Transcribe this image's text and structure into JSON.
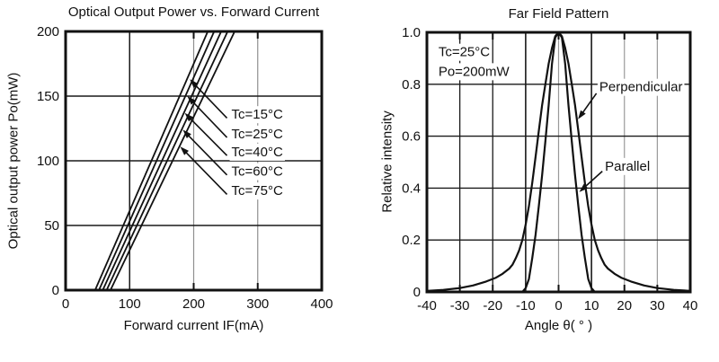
{
  "page": {
    "background": "#ffffff",
    "ink": "#111111",
    "grid_gray": "#8f8f8f"
  },
  "chart_data": [
    {
      "type": "line",
      "title": "Optical Output Power vs. Forward Current",
      "xlabel": "Forward current IF(mA)",
      "ylabel": "Optical output power Po(mW)",
      "xlim": [
        0,
        400
      ],
      "ylim": [
        0,
        200
      ],
      "xtick_vals": [
        0,
        100,
        200,
        300,
        400
      ],
      "xtick_labels": [
        "0",
        "100",
        "200",
        "300",
        "400"
      ],
      "ytick_vals": [
        0,
        50,
        100,
        150,
        200
      ],
      "ytick_labels": [
        "0",
        "50",
        "100",
        "150",
        "200"
      ],
      "grid": {
        "x": [
          {
            "v": 100,
            "color": "#1a1a1a",
            "w": 1.5
          },
          {
            "v": 200,
            "color": "#8f8f8f",
            "w": 1.2
          },
          {
            "v": 300,
            "color": "#8f8f8f",
            "w": 1.2
          }
        ],
        "y": [
          {
            "v": 50,
            "color": "#1a1a1a",
            "w": 1.4
          },
          {
            "v": 100,
            "color": "#1a1a1a",
            "w": 1.4
          },
          {
            "v": 150,
            "color": "#1a1a1a",
            "w": 1.4
          }
        ],
        "stubs_x": [
          200,
          300
        ]
      },
      "series": [
        {
          "name": "Tc=15C",
          "points": [
            [
              46,
              0
            ],
            [
              222,
              200
            ]
          ]
        },
        {
          "name": "Tc=25C",
          "points": [
            [
              52,
              0
            ],
            [
              232,
              200
            ]
          ]
        },
        {
          "name": "Tc=40C",
          "points": [
            [
              58,
              0
            ],
            [
              243,
              200
            ]
          ]
        },
        {
          "name": "Tc=60C",
          "points": [
            [
              64,
              0
            ],
            [
              253,
              200
            ]
          ]
        },
        {
          "name": "Tc=75C",
          "points": [
            [
              70,
              0
            ],
            [
              264,
              200
            ]
          ]
        }
      ],
      "labels": [
        {
          "text": "Tc=15°C",
          "x": 259,
          "y": 136
        },
        {
          "text": "Tc=25°C",
          "x": 259,
          "y": 121
        },
        {
          "text": "Tc=40°C",
          "x": 259,
          "y": 107
        },
        {
          "text": "Tc=60°C",
          "x": 259,
          "y": 92
        },
        {
          "text": "Tc=75°C",
          "x": 259,
          "y": 77
        }
      ],
      "arrows": [
        {
          "from": [
            252,
            133
          ],
          "to": [
            194,
            163
          ]
        },
        {
          "from": [
            252,
            118
          ],
          "to": [
            190,
            150
          ]
        },
        {
          "from": [
            252,
            104
          ],
          "to": [
            186,
            137
          ]
        },
        {
          "from": [
            252,
            89
          ],
          "to": [
            183,
            124
          ]
        },
        {
          "from": [
            252,
            74
          ],
          "to": [
            179,
            111
          ]
        }
      ]
    },
    {
      "type": "line",
      "title": "Far Field Pattern",
      "xlabel": "Angle θ( ° )",
      "ylabel": "Relative intensity",
      "xlim": [
        -40,
        40
      ],
      "ylim": [
        0,
        1
      ],
      "xtick_vals": [
        -40,
        -30,
        -20,
        -10,
        0,
        10,
        20,
        30,
        40
      ],
      "xtick_labels": [
        "-40",
        "-30",
        "-20",
        "-10",
        "0",
        "10",
        "20",
        "30",
        "40"
      ],
      "ytick_vals": [
        0,
        0.2,
        0.4,
        0.6,
        0.8,
        1.0
      ],
      "ytick_labels": [
        "0",
        "0.2",
        "0.4",
        "0.6",
        "0.8",
        "1.0"
      ],
      "grid": {
        "x": [
          {
            "v": -30,
            "color": "#1a1a1a",
            "w": 1.3
          },
          {
            "v": -20,
            "color": "#1a1a1a",
            "w": 1.3
          },
          {
            "v": -10,
            "color": "#1a1a1a",
            "w": 1.6
          },
          {
            "v": 0,
            "color": "#9a9a9a",
            "w": 1.2
          },
          {
            "v": 10,
            "color": "#1a1a1a",
            "w": 1.6
          },
          {
            "v": 20,
            "color": "#9a9a9a",
            "w": 1.2
          },
          {
            "v": 30,
            "color": "#9a9a9a",
            "w": 1.2
          }
        ],
        "y": [
          {
            "v": 0.2,
            "color": "#1a1a1a",
            "w": 1.4
          },
          {
            "v": 0.4,
            "color": "#1a1a1a",
            "w": 1.4
          },
          {
            "v": 0.6,
            "color": "#1a1a1a",
            "w": 1.4
          },
          {
            "v": 0.8,
            "color": "#1a1a1a",
            "w": 1.4
          }
        ],
        "stubs_x": [
          -30,
          -20,
          0,
          20,
          30
        ]
      },
      "series": [
        {
          "name": "Perpendicular",
          "points": [
            [
              -40,
              0.004
            ],
            [
              -35,
              0.008
            ],
            [
              -30,
              0.015
            ],
            [
              -26,
              0.025
            ],
            [
              -22,
              0.04
            ],
            [
              -19,
              0.055
            ],
            [
              -17,
              0.07
            ],
            [
              -15,
              0.09
            ],
            [
              -14,
              0.105
            ],
            [
              -13,
              0.13
            ],
            [
              -12,
              0.16
            ],
            [
              -11,
              0.2
            ],
            [
              -10,
              0.26
            ],
            [
              -9,
              0.33
            ],
            [
              -8,
              0.42
            ],
            [
              -7,
              0.52
            ],
            [
              -6,
              0.62
            ],
            [
              -5,
              0.72
            ],
            [
              -4,
              0.8
            ],
            [
              -3,
              0.88
            ],
            [
              -2,
              0.94
            ],
            [
              -1,
              0.985
            ],
            [
              0,
              1.0
            ],
            [
              1,
              0.985
            ],
            [
              2,
              0.94
            ],
            [
              3,
              0.88
            ],
            [
              4,
              0.8
            ],
            [
              5,
              0.72
            ],
            [
              6,
              0.62
            ],
            [
              7,
              0.52
            ],
            [
              8,
              0.42
            ],
            [
              9,
              0.33
            ],
            [
              10,
              0.26
            ],
            [
              11,
              0.2
            ],
            [
              12,
              0.16
            ],
            [
              13,
              0.13
            ],
            [
              14,
              0.105
            ],
            [
              15,
              0.09
            ],
            [
              17,
              0.07
            ],
            [
              19,
              0.055
            ],
            [
              22,
              0.04
            ],
            [
              26,
              0.025
            ],
            [
              30,
              0.015
            ],
            [
              35,
              0.008
            ],
            [
              40,
              0.004
            ]
          ]
        },
        {
          "name": "Parallel",
          "points": [
            [
              -11,
              0
            ],
            [
              -10,
              0.015
            ],
            [
              -9,
              0.05
            ],
            [
              -8,
              0.13
            ],
            [
              -7,
              0.22
            ],
            [
              -6,
              0.33
            ],
            [
              -5,
              0.45
            ],
            [
              -4,
              0.58
            ],
            [
              -3,
              0.72
            ],
            [
              -2,
              0.88
            ],
            [
              -1,
              0.98
            ],
            [
              0,
              1.0
            ],
            [
              1,
              0.98
            ],
            [
              2,
              0.88
            ],
            [
              3,
              0.72
            ],
            [
              4,
              0.58
            ],
            [
              5,
              0.45
            ],
            [
              6,
              0.33
            ],
            [
              7,
              0.22
            ],
            [
              8,
              0.13
            ],
            [
              9,
              0.05
            ],
            [
              10,
              0.015
            ],
            [
              11,
              0
            ]
          ]
        }
      ],
      "labels": [
        {
          "text": "Perpendicular",
          "x": 12.4,
          "y": 0.79
        },
        {
          "text": "Parallel",
          "x": 14.1,
          "y": 0.485
        },
        {
          "text": "Tc=25°C",
          "x": -36.5,
          "y": 0.925
        },
        {
          "text": "Po=200mW",
          "x": -36.5,
          "y": 0.85
        }
      ],
      "arrows": [
        {
          "from": [
            11.5,
            0.765
          ],
          "to": [
            5.9,
            0.665
          ]
        },
        {
          "from": [
            13.3,
            0.465
          ],
          "to": [
            6.3,
            0.385
          ]
        }
      ]
    }
  ]
}
